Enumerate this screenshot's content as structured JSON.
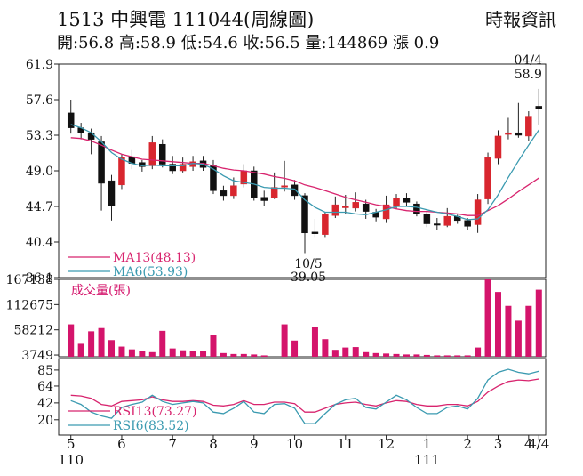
{
  "header": {
    "title": "1513 中興電 111044(周線圖)",
    "source": "時報資訊",
    "ohlc": "開:56.8 高:58.9 低:54.6 收:56.5 量:144869 漲 0.9"
  },
  "colors": {
    "up": "#d8262e",
    "down": "#111111",
    "ma13": "#d8246e",
    "ma6": "#3a9ab0",
    "volume": "#d4146b",
    "rsi13": "#d8246e",
    "rsi6": "#3a9ab0"
  },
  "chart_data": [
    {
      "type": "candlestick",
      "panel": "price",
      "ylim": [
        36.1,
        61.9
      ],
      "yticks": [
        "61.9",
        "57.6",
        "53.3",
        "49.0",
        "44.7",
        "40.4",
        "36.1"
      ],
      "legend": [
        {
          "text": "MA13(48.13)",
          "color": "ma13"
        },
        {
          "text": "MA6(53.93)",
          "color": "ma6"
        }
      ],
      "annotations": {
        "high_date": "04/4",
        "high_value": "58.9",
        "low_date": "10/5",
        "low_value": "39.05"
      },
      "candles": [
        [
          56.0,
          54.2,
          57.6,
          53.5
        ],
        [
          54.2,
          53.6,
          54.8,
          52.8
        ],
        [
          53.6,
          52.8,
          54.1,
          51.0
        ],
        [
          52.5,
          47.5,
          53.2,
          44.2
        ],
        [
          47.8,
          44.8,
          48.5,
          43.0
        ],
        [
          47.3,
          50.6,
          51.0,
          46.8
        ],
        [
          50.7,
          49.9,
          51.5,
          49.2
        ],
        [
          50.0,
          49.5,
          50.3,
          48.9
        ],
        [
          49.6,
          52.4,
          53.2,
          49.2
        ],
        [
          52.2,
          49.8,
          52.8,
          49.4
        ],
        [
          49.8,
          49.0,
          50.8,
          48.6
        ],
        [
          49.0,
          49.8,
          50.6,
          48.8
        ],
        [
          49.5,
          50.1,
          50.8,
          49.0
        ],
        [
          50.2,
          49.4,
          50.8,
          49.0
        ],
        [
          49.6,
          46.6,
          50.3,
          46.2
        ],
        [
          46.6,
          46.0,
          47.2,
          45.4
        ],
        [
          46.0,
          47.2,
          48.2,
          45.6
        ],
        [
          47.4,
          49.0,
          49.8,
          47.0
        ],
        [
          49.0,
          45.8,
          49.5,
          45.4
        ],
        [
          45.8,
          45.4,
          46.6,
          44.8
        ],
        [
          45.8,
          47.0,
          48.8,
          45.6
        ],
        [
          47.1,
          47.2,
          50.2,
          46.5
        ],
        [
          47.3,
          46.0,
          47.9,
          45.5
        ],
        [
          46.0,
          41.5,
          46.3,
          39.05
        ],
        [
          41.6,
          41.4,
          43.2,
          41.0
        ],
        [
          41.3,
          43.8,
          44.0,
          41.0
        ],
        [
          43.6,
          44.9,
          45.9,
          43.3
        ],
        [
          44.6,
          44.7,
          46.1,
          43.8
        ],
        [
          44.5,
          45.2,
          46.4,
          44.1
        ],
        [
          45.0,
          44.1,
          45.5,
          43.2
        ],
        [
          44.0,
          43.4,
          44.4,
          42.9
        ],
        [
          43.2,
          44.9,
          46.0,
          42.7
        ],
        [
          44.7,
          45.7,
          46.2,
          44.4
        ],
        [
          45.7,
          45.2,
          46.3,
          44.8
        ],
        [
          45.0,
          43.8,
          45.3,
          43.5
        ],
        [
          43.8,
          42.6,
          44.2,
          42.2
        ],
        [
          42.6,
          42.5,
          43.3,
          41.8
        ],
        [
          42.4,
          43.5,
          44.5,
          42.2
        ],
        [
          43.5,
          43.0,
          43.7,
          42.6
        ],
        [
          43.0,
          42.3,
          43.3,
          41.8
        ],
        [
          42.5,
          45.5,
          46.2,
          41.5
        ],
        [
          45.6,
          50.6,
          51.2,
          45.0
        ],
        [
          50.5,
          53.2,
          53.9,
          49.8
        ],
        [
          53.4,
          53.6,
          55.4,
          52.8
        ],
        [
          53.6,
          53.3,
          57.2,
          53.0
        ],
        [
          53.2,
          55.6,
          56.2,
          52.6
        ],
        [
          56.8,
          56.5,
          58.9,
          54.6
        ]
      ],
      "ma13": [
        53.0,
        52.9,
        52.6,
        52.1,
        51.5,
        51.0,
        50.7,
        50.4,
        50.3,
        50.2,
        50.1,
        50.0,
        49.9,
        49.9,
        49.6,
        49.3,
        49.1,
        49.0,
        48.8,
        48.6,
        48.3,
        48.1,
        47.8,
        47.3,
        47.0,
        46.6,
        46.2,
        45.8,
        45.5,
        45.2,
        44.9,
        44.7,
        44.4,
        44.2,
        44.1,
        44.1,
        44.0,
        43.9,
        43.8,
        43.6,
        43.6,
        44.2,
        44.8,
        45.6,
        46.5,
        47.3,
        48.13
      ],
      "ma6": [
        54.6,
        54.2,
        53.6,
        52.5,
        51.2,
        50.4,
        49.9,
        49.6,
        49.7,
        49.6,
        49.6,
        49.6,
        49.9,
        49.8,
        49.2,
        48.4,
        47.8,
        47.6,
        47.4,
        47.0,
        46.9,
        46.9,
        46.8,
        45.5,
        44.6,
        44.0,
        44.0,
        44.0,
        43.8,
        43.7,
        44.0,
        44.3,
        44.7,
        44.7,
        44.6,
        44.3,
        44.0,
        43.8,
        43.5,
        43.1,
        43.2,
        44.3,
        46.1,
        48.2,
        50.2,
        52.1,
        53.93
      ]
    },
    {
      "type": "bar",
      "panel": "volume",
      "title": "成交量(張)",
      "ylim": [
        0,
        167138
      ],
      "yticks": [
        "167138",
        "112675",
        "58212",
        "3749"
      ],
      "values": [
        70000,
        28000,
        55000,
        62000,
        36000,
        22000,
        16000,
        12000,
        10000,
        56000,
        18000,
        14000,
        13000,
        13000,
        48000,
        8000,
        6000,
        6000,
        5000,
        3000,
        0,
        70000,
        35000,
        0,
        65000,
        38000,
        15000,
        20000,
        21000,
        10000,
        8000,
        7000,
        6000,
        5000,
        5000,
        4000,
        3000,
        3000,
        3000,
        3000,
        20000,
        167138,
        140000,
        110000,
        78000,
        110000,
        144869
      ]
    },
    {
      "type": "line",
      "panel": "rsi",
      "ylim": [
        0,
        100
      ],
      "yticks": [
        "85",
        "64",
        "42",
        "20"
      ],
      "legend": [
        {
          "text": "RSI13(73.27)",
          "color": "rsi13"
        },
        {
          "text": "RSI6(83.52)",
          "color": "rsi6"
        }
      ],
      "series": [
        {
          "name": "RSI13(73.27)",
          "values": [
            52,
            51,
            48,
            40,
            38,
            44,
            45,
            46,
            50,
            46,
            44,
            44,
            45,
            44,
            39,
            38,
            40,
            45,
            40,
            40,
            43,
            43,
            41,
            30,
            30,
            35,
            40,
            42,
            43,
            40,
            38,
            42,
            45,
            44,
            40,
            38,
            38,
            40,
            40,
            38,
            44,
            56,
            64,
            70,
            72,
            71,
            73.27
          ]
        },
        {
          "name": "RSI6(83.52)",
          "values": [
            45,
            40,
            30,
            25,
            22,
            36,
            40,
            43,
            52,
            44,
            40,
            42,
            44,
            42,
            30,
            28,
            35,
            44,
            30,
            28,
            40,
            41,
            35,
            15,
            15,
            28,
            40,
            46,
            48,
            36,
            34,
            43,
            52,
            46,
            36,
            28,
            28,
            36,
            38,
            34,
            48,
            72,
            82,
            86,
            82,
            80,
            83.52
          ]
        }
      ]
    },
    {
      "type": "axis",
      "xlabels": [
        "5",
        "6",
        "7",
        "8",
        "9",
        "10",
        "11",
        "12",
        "1",
        "2",
        "3",
        "4",
        "4/4"
      ],
      "xyears": [
        "110",
        "111"
      ]
    }
  ]
}
